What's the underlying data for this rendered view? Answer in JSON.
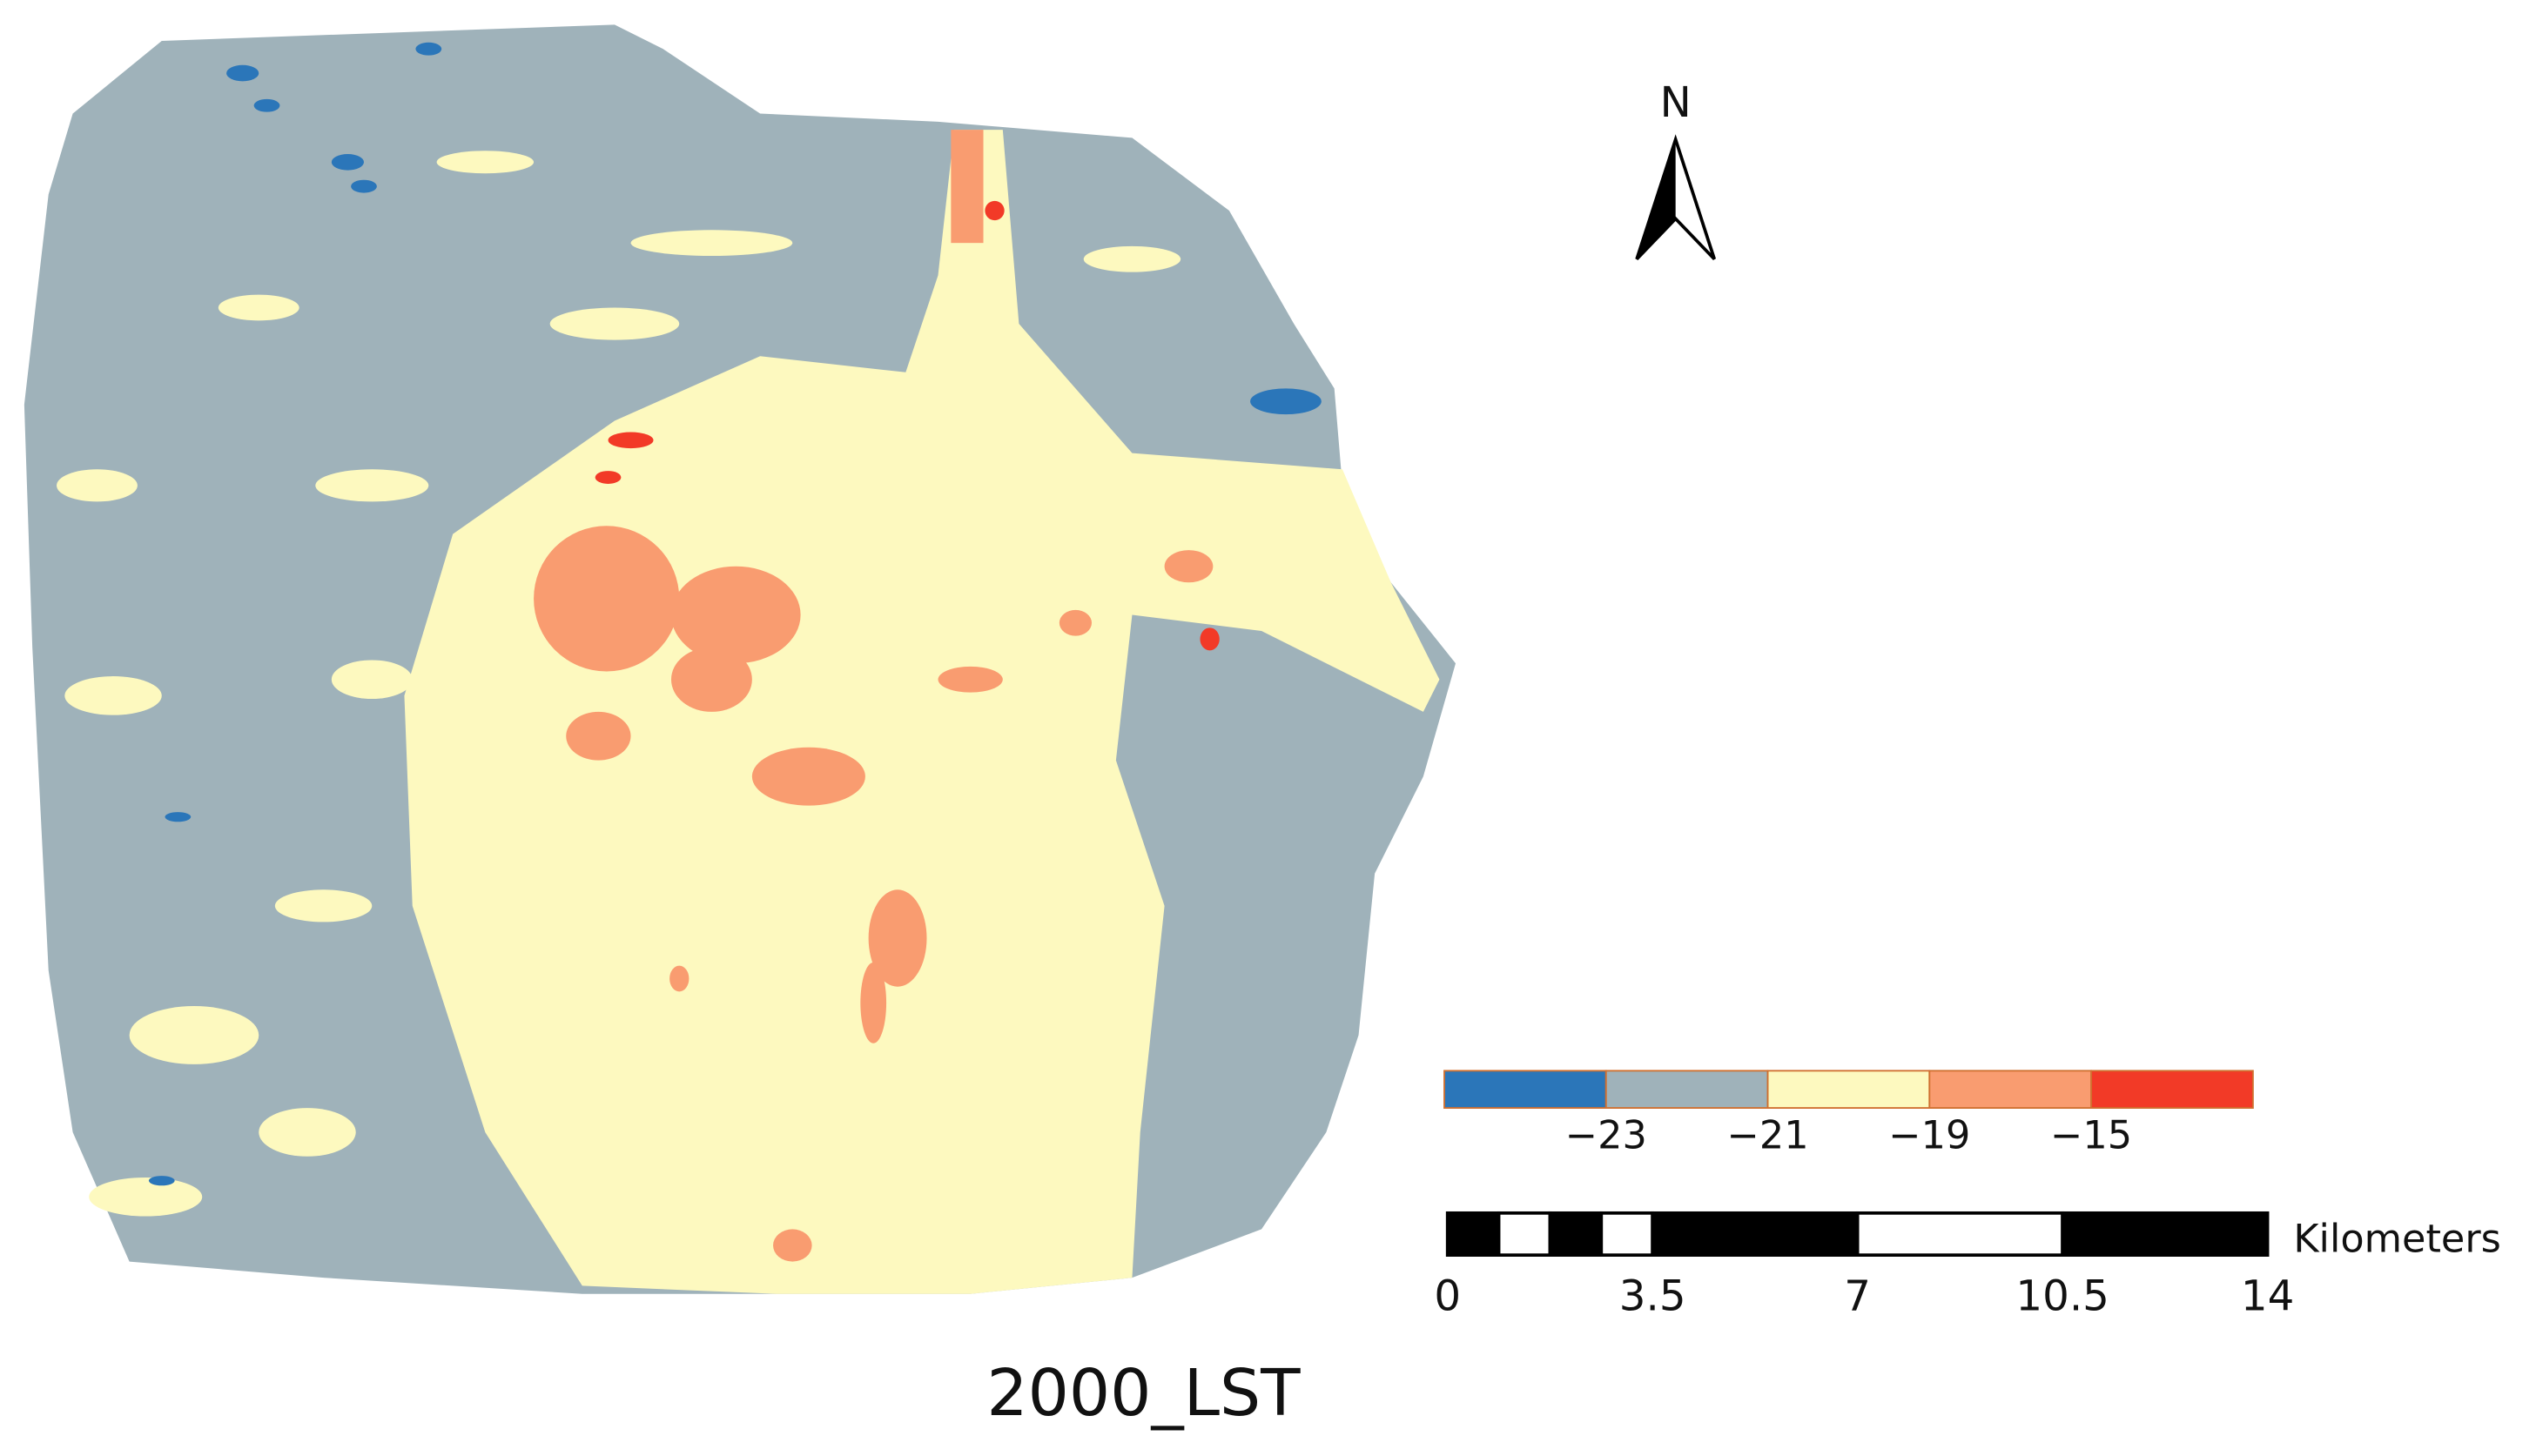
{
  "title": "2000_LST",
  "north_arrow": {
    "label": "N"
  },
  "legend": {
    "colors": [
      "#2b76b9",
      "#9fb2ba",
      "#fdf9bf",
      "#f99c70",
      "#f23a27"
    ],
    "labels": [
      "−23",
      "−21",
      "−19",
      "−15"
    ]
  },
  "scale_bar": {
    "unit": "Kilometers",
    "ticks": [
      0,
      3.5,
      7,
      10.5,
      14
    ]
  }
}
